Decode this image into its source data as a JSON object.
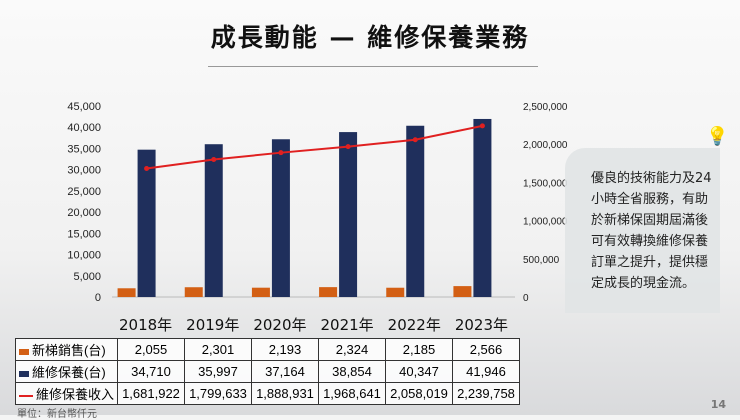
{
  "title": "成長動能 — 維修保養業務",
  "note": "優良的技術能力及24小時全省服務，有助於新梯保固期屆滿後可有效轉換維修保養訂單之提升，提供穩定成長的現金流。",
  "unit": "單位：新台幣仟元",
  "page_number": "14",
  "icons": {
    "note": "lightbulb-icon"
  },
  "chart_data": {
    "type": "bar+line",
    "categories": [
      "2018年",
      "2019年",
      "2020年",
      "2021年",
      "2022年",
      "2023年"
    ],
    "left_axis": {
      "ylim": [
        0,
        45000
      ],
      "ticks": [
        "0",
        "5,000",
        "10,000",
        "15,000",
        "20,000",
        "25,000",
        "30,000",
        "35,000",
        "40,000",
        "45,000"
      ]
    },
    "right_axis": {
      "ylim": [
        0,
        2500000
      ],
      "ticks": [
        "0",
        "500,000",
        "1,000,000",
        "1,500,000",
        "2,000,000",
        "2,500,000"
      ]
    },
    "series": [
      {
        "name": "新梯銷售(台)",
        "type": "bar",
        "axis": "left",
        "color": "#d35f14",
        "values": [
          2055,
          2301,
          2193,
          2324,
          2185,
          2566
        ],
        "labels": [
          "2,055",
          "2,301",
          "2,193",
          "2,324",
          "2,185",
          "2,566"
        ]
      },
      {
        "name": "維修保養(台)",
        "type": "bar",
        "axis": "left",
        "color": "#1f2f5c",
        "values": [
          34710,
          35997,
          37164,
          38854,
          40347,
          41946
        ],
        "labels": [
          "34,710",
          "35,997",
          "37,164",
          "38,854",
          "40,347",
          "41,946"
        ]
      },
      {
        "name": "維修保養收入",
        "type": "line",
        "axis": "right",
        "color": "#e02020",
        "values": [
          1681922,
          1799633,
          1888931,
          1968641,
          2058019,
          2239758
        ],
        "labels": [
          "1,681,922",
          "1,799,633",
          "1,888,931",
          "1,968,641",
          "2,058,019",
          "2,239,758"
        ]
      }
    ],
    "grid": false,
    "legend": "data-table"
  }
}
